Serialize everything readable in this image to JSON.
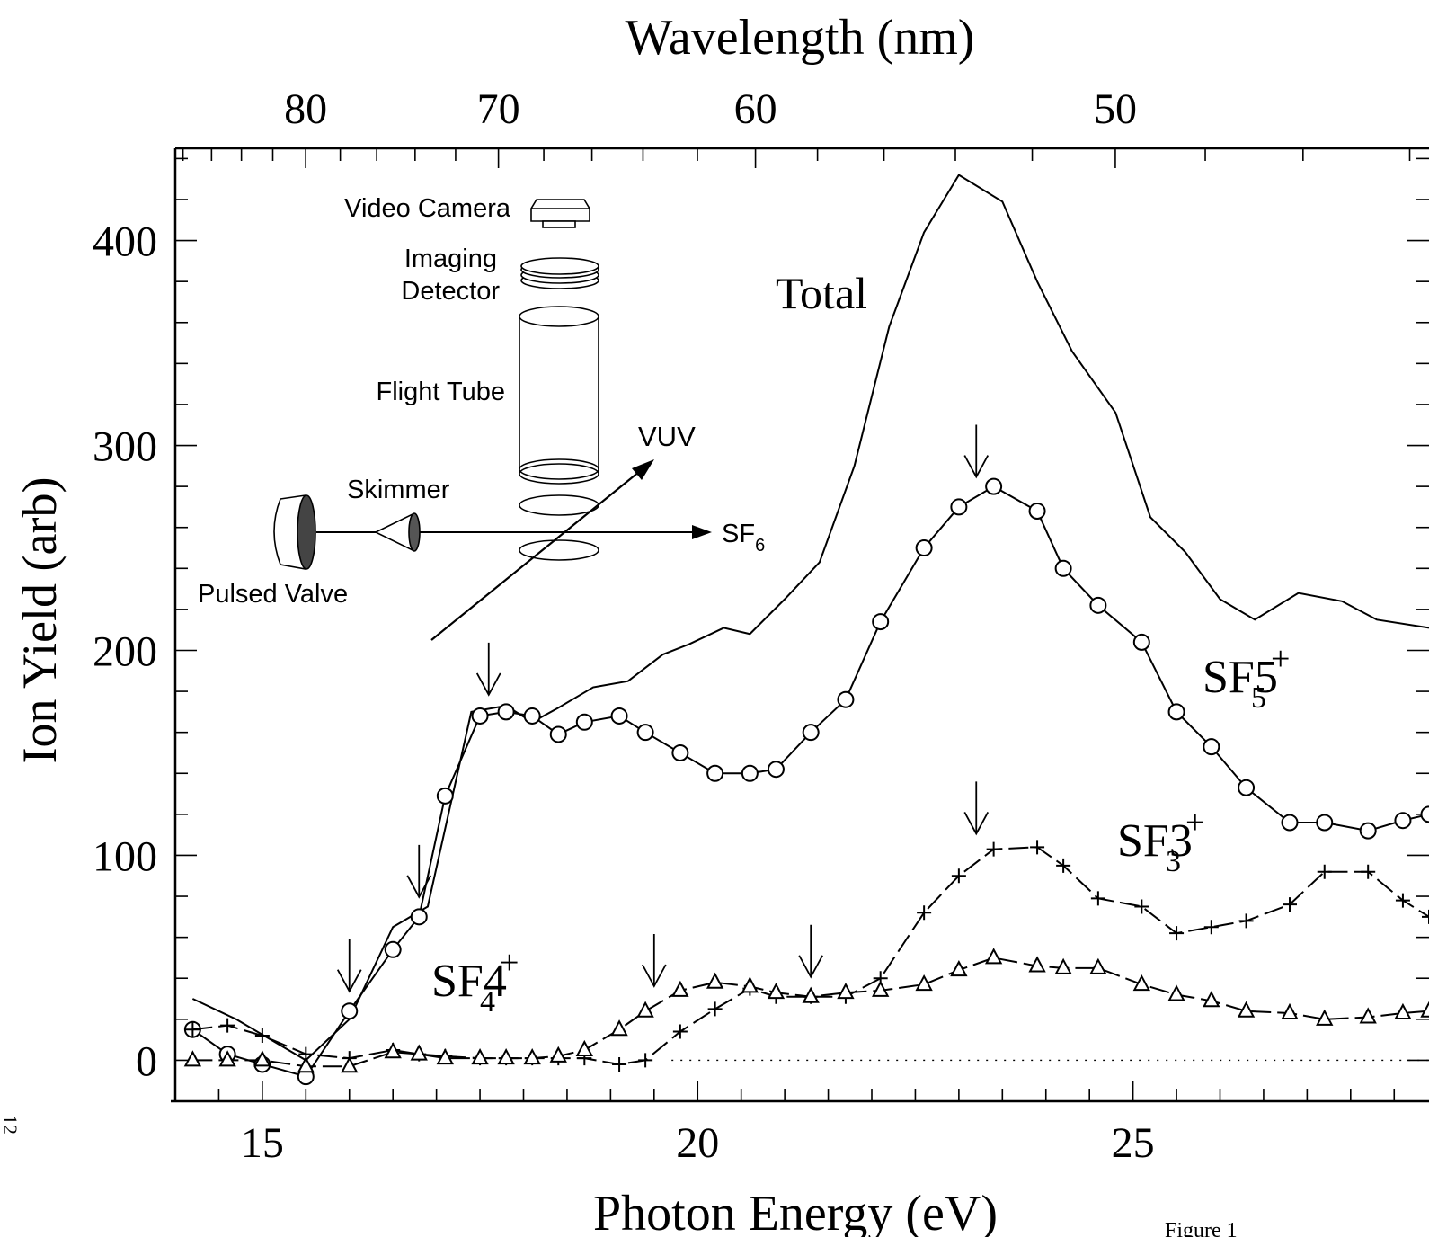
{
  "chart_data": {
    "type": "line",
    "xlabel": "Photon Energy (eV)",
    "ylabel": "Ion Yield (arb)",
    "top_axis_label": "Wavelength (nm)",
    "xlim": [
      14.0,
      28.4
    ],
    "ylim": [
      -20,
      445
    ],
    "x_ticks": [
      15,
      20,
      25
    ],
    "y_ticks": [
      0,
      100,
      200,
      300,
      400
    ],
    "top_ticks_nm": [
      80,
      70,
      60,
      50
    ],
    "grid": false,
    "series": [
      {
        "name": "Total",
        "marker": "none",
        "dash": "solid",
        "x": [
          14.2,
          14.7,
          15.1,
          15.5,
          16.0,
          16.5,
          16.9,
          17.4,
          17.8,
          18.1,
          18.4,
          18.8,
          19.2,
          19.6,
          19.9,
          20.3,
          20.6,
          21.0,
          21.4,
          21.8,
          22.2,
          22.6,
          23.0,
          23.5,
          23.9,
          24.3,
          24.8,
          25.2,
          25.6,
          26.0,
          26.4,
          26.9,
          27.4,
          27.8,
          28.4
        ],
        "y": [
          30,
          20,
          10,
          0,
          20,
          65,
          75,
          170,
          173,
          165,
          172,
          182,
          185,
          198,
          203,
          211,
          208,
          225,
          243,
          290,
          358,
          404,
          432,
          419,
          380,
          346,
          316,
          265,
          248,
          225,
          215,
          228,
          224,
          215,
          211
        ]
      },
      {
        "name": "SF5+",
        "marker": "circle",
        "dash": "solid",
        "x": [
          14.2,
          14.6,
          15.0,
          15.5,
          16.0,
          16.5,
          16.8,
          17.1,
          17.5,
          17.8,
          18.1,
          18.4,
          18.7,
          19.1,
          19.4,
          19.8,
          20.2,
          20.6,
          20.9,
          21.3,
          21.7,
          22.1,
          22.6,
          23.0,
          23.4,
          23.9,
          24.2,
          24.6,
          25.1,
          25.5,
          25.9,
          26.3,
          26.8,
          27.2,
          27.7,
          28.1,
          28.4
        ],
        "y": [
          15,
          3,
          -2,
          -8,
          24,
          54,
          70,
          129,
          168,
          170,
          168,
          159,
          165,
          168,
          160,
          150,
          140,
          140,
          142,
          160,
          176,
          214,
          250,
          270,
          280,
          268,
          240,
          222,
          204,
          170,
          153,
          133,
          116,
          116,
          112,
          117,
          120
        ]
      },
      {
        "name": "SF3+",
        "marker": "plus",
        "dash": "dashed",
        "x": [
          14.2,
          14.6,
          15.0,
          15.5,
          16.0,
          16.5,
          16.8,
          17.1,
          17.5,
          17.8,
          18.1,
          18.4,
          18.7,
          19.1,
          19.4,
          19.8,
          20.2,
          20.6,
          20.9,
          21.3,
          21.7,
          22.1,
          22.6,
          23.0,
          23.4,
          23.9,
          24.2,
          24.6,
          25.1,
          25.5,
          25.9,
          26.3,
          26.8,
          27.2,
          27.7,
          28.1,
          28.4
        ],
        "y": [
          15,
          17,
          12,
          3,
          1,
          5,
          3,
          2,
          1,
          1,
          1,
          1,
          1,
          -2,
          0,
          14,
          25,
          35,
          31,
          31,
          31,
          40,
          72,
          90,
          103,
          104,
          95,
          79,
          75,
          62,
          65,
          68,
          76,
          92,
          92,
          78,
          70
        ]
      },
      {
        "name": "SF4+",
        "marker": "triangle",
        "dash": "dashed",
        "x": [
          14.2,
          14.6,
          15.0,
          15.5,
          16.0,
          16.5,
          16.8,
          17.1,
          17.5,
          17.8,
          18.1,
          18.4,
          18.7,
          19.1,
          19.4,
          19.8,
          20.2,
          20.6,
          20.9,
          21.3,
          21.7,
          22.1,
          22.6,
          23.0,
          23.4,
          23.9,
          24.2,
          24.6,
          25.1,
          25.5,
          25.9,
          26.3,
          26.8,
          27.2,
          27.7,
          28.1,
          28.4
        ],
        "y": [
          0,
          0,
          0,
          -3,
          -3,
          4,
          3,
          1,
          1,
          1,
          1,
          2,
          5,
          15,
          24,
          34,
          38,
          36,
          33,
          31,
          33,
          34,
          37,
          44,
          50,
          46,
          45,
          45,
          37,
          32,
          29,
          24,
          23,
          20,
          21,
          23,
          24
        ]
      }
    ],
    "series_labels": [
      "Total",
      "SF5",
      "SF3",
      "SF4"
    ],
    "arrow_x": [
      16.0,
      16.8,
      17.6,
      19.5,
      21.3,
      23.2
    ]
  },
  "inset": {
    "video_camera": "Video Camera",
    "imaging": "Imaging",
    "detector": "Detector",
    "flight_tube": "Flight Tube",
    "vuv": "VUV",
    "skimmer": "Skimmer",
    "sf6": "SF",
    "sf6_sub": "6",
    "pulsed_valve": "Pulsed Valve"
  },
  "margin_number": "12",
  "figure_caption": "Figure 1"
}
